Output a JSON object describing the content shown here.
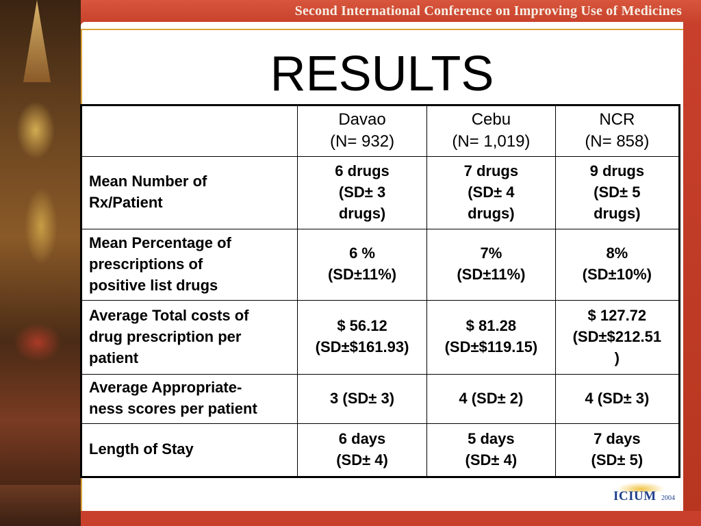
{
  "banner": {
    "text": "Second International Conference on Improving Use of Medicines"
  },
  "slide": {
    "title": "RESULTS"
  },
  "table": {
    "columns": [
      {
        "name": "Davao",
        "n": "(N= 932)"
      },
      {
        "name": "Cebu",
        "n": "(N= 1,019)"
      },
      {
        "name": "NCR",
        "n": "(N= 858)"
      }
    ],
    "rows": [
      {
        "label": [
          "Mean Number of",
          "Rx/Patient"
        ],
        "cells": [
          [
            "6 drugs",
            "(SD± 3",
            "drugs)"
          ],
          [
            "7 drugs",
            "(SD± 4",
            "drugs)"
          ],
          [
            "9 drugs",
            "(SD± 5",
            "drugs)"
          ]
        ]
      },
      {
        "label": [
          "Mean Percentage of",
          "prescriptions of",
          "positive list drugs"
        ],
        "cells": [
          [
            "6 %",
            "(SD±11%)"
          ],
          [
            "7%",
            "(SD±11%)"
          ],
          [
            "8%",
            "(SD±10%)"
          ]
        ]
      },
      {
        "label": [
          "Average Total costs of",
          "drug prescription per",
          "patient"
        ],
        "cells": [
          [
            "$ 56.12",
            "(SD±$161.93)"
          ],
          [
            "$ 81.28",
            "(SD±$119.15)"
          ],
          [
            "$ 127.72",
            "(SD±$212.51",
            ")"
          ]
        ]
      },
      {
        "label": [
          "Average Appropriate-",
          "ness scores per patient"
        ],
        "cells": [
          [
            "3 (SD± 3)"
          ],
          [
            "4 (SD± 2)"
          ],
          [
            "4 (SD± 3)"
          ]
        ]
      },
      {
        "label": [
          "Length of Stay"
        ],
        "cells": [
          [
            "6 days",
            "(SD± 4)"
          ],
          [
            "5 days",
            "(SD± 4)"
          ],
          [
            "7 days",
            "(SD± 5)"
          ]
        ]
      }
    ]
  },
  "logo": {
    "text": "ICIUM",
    "year": "2004"
  }
}
